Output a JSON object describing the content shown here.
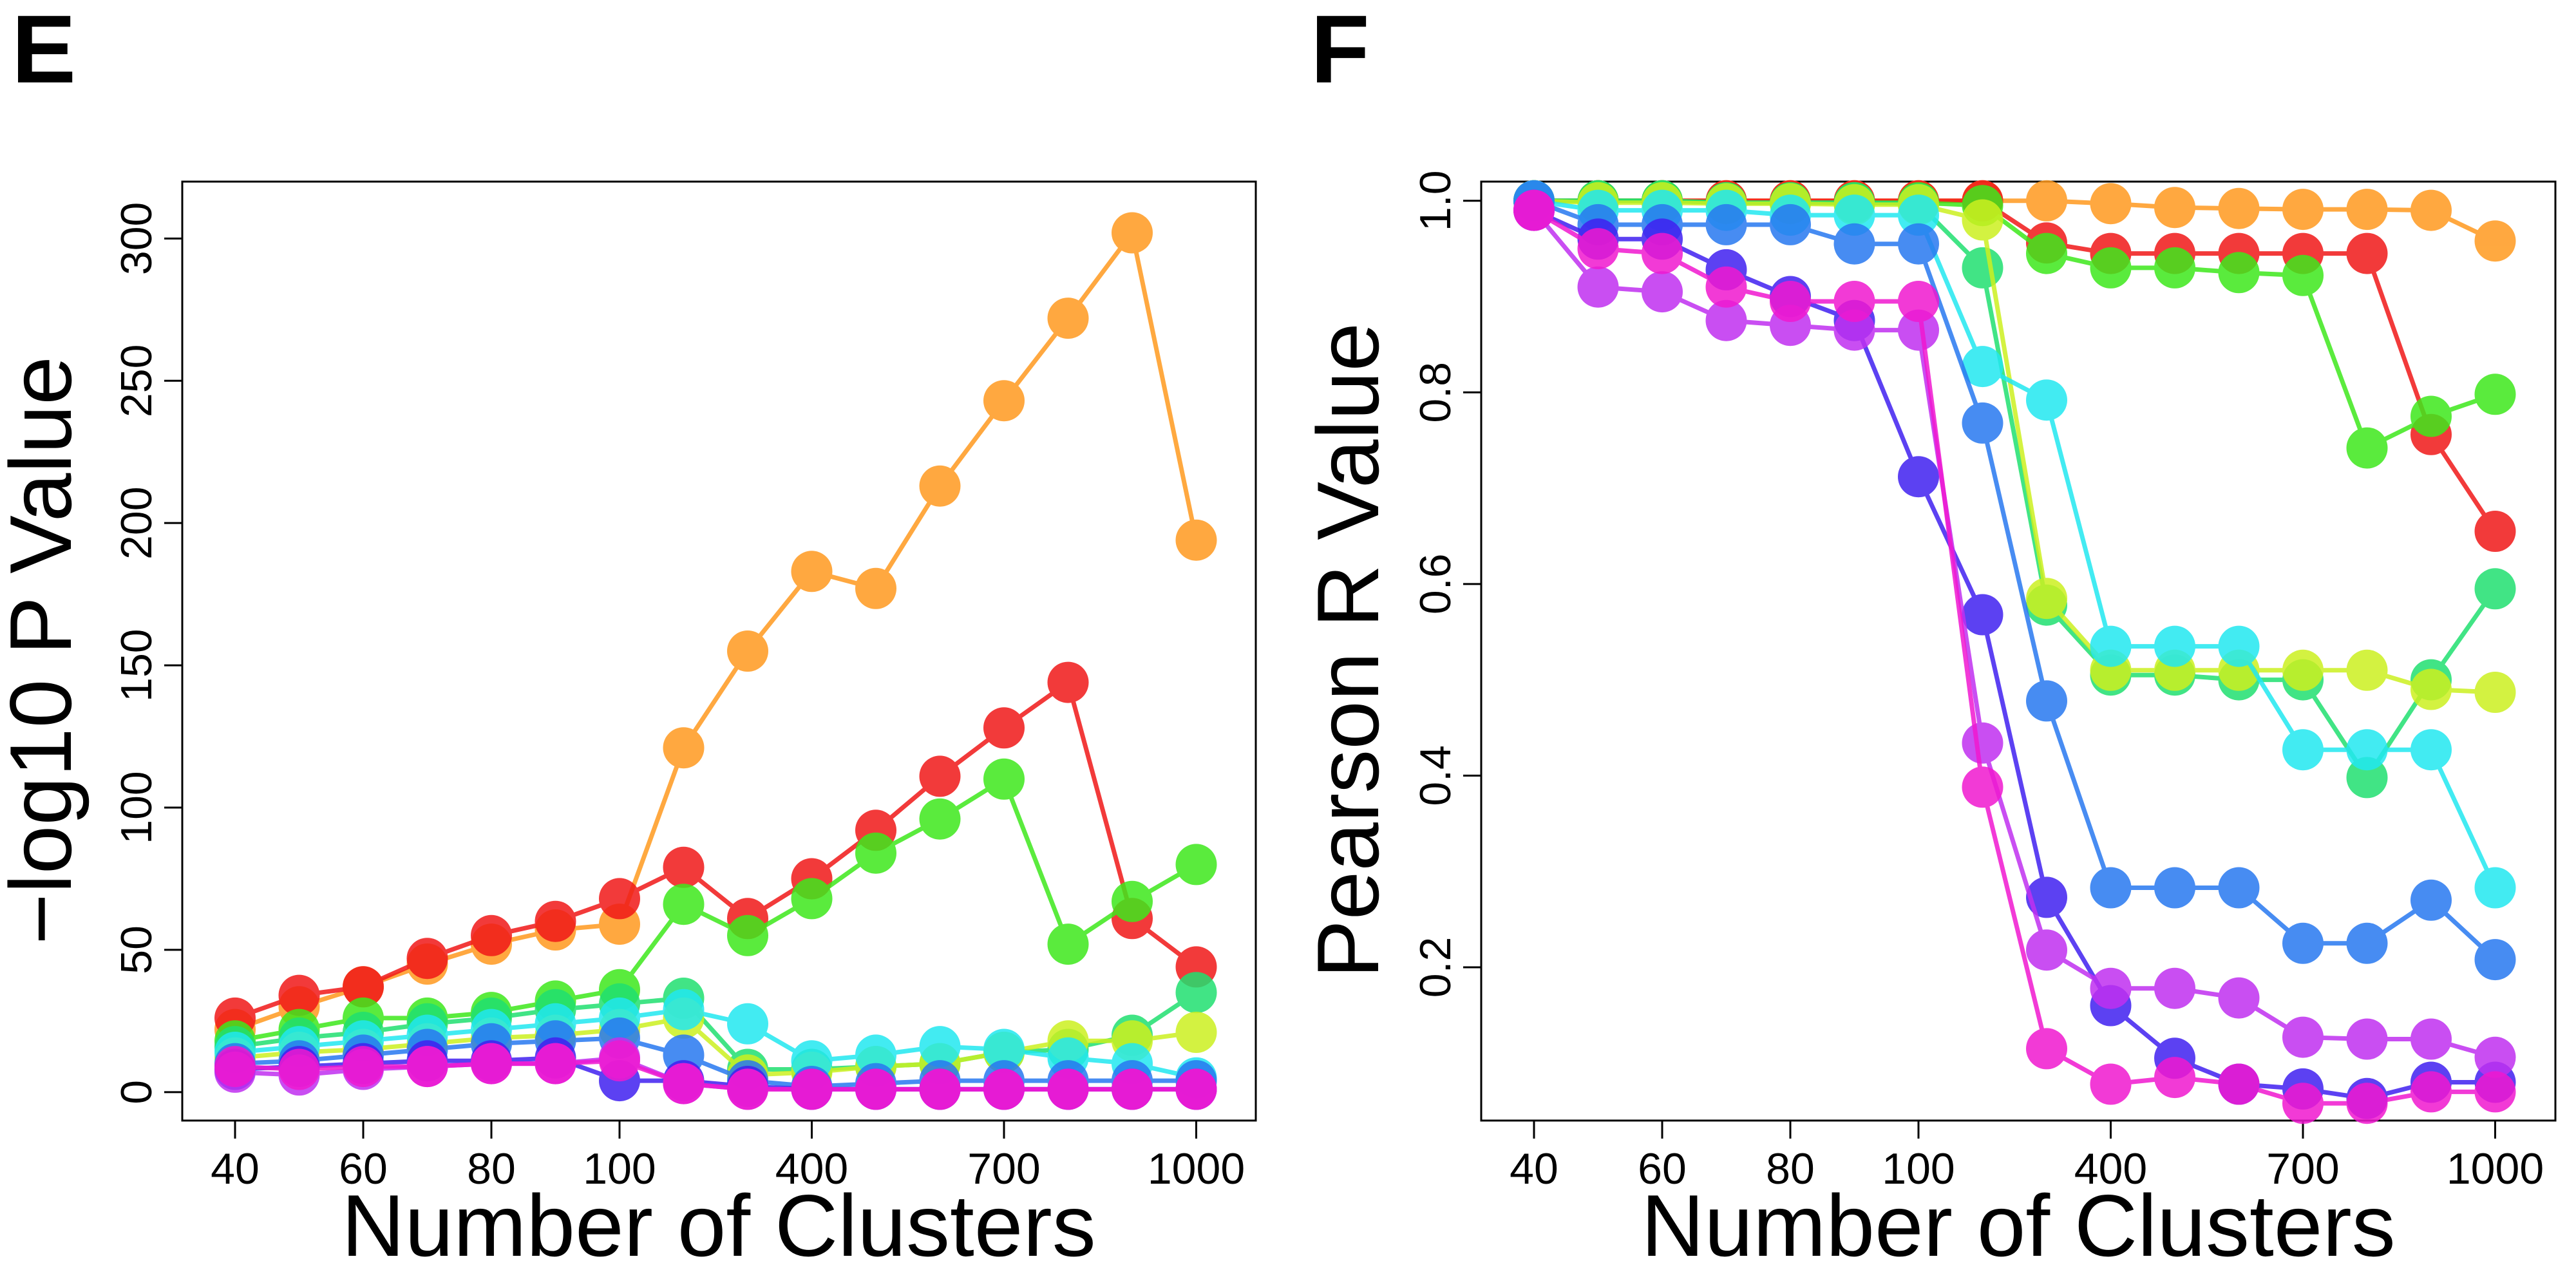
{
  "chart_data": [
    {
      "panel": "E",
      "type": "line",
      "xlabel": "Number of Clusters",
      "ylabel": "−log10 P Value",
      "x": [
        40,
        50,
        60,
        70,
        80,
        90,
        100,
        200,
        300,
        400,
        500,
        600,
        700,
        800,
        900,
        1000
      ],
      "x_tick_labels": [
        "40",
        "60",
        "80",
        "100",
        "400",
        "700",
        "1000"
      ],
      "y_ticks": [
        0,
        50,
        100,
        150,
        200,
        250,
        300
      ],
      "ylim": [
        -10,
        320
      ],
      "grid": false,
      "series": [
        {
          "color": "#ff9a1f",
          "values": [
            22,
            30,
            37,
            45,
            52,
            57,
            59,
            121,
            155,
            183,
            177,
            213,
            243,
            272,
            302,
            194
          ]
        },
        {
          "color": "#f01818",
          "values": [
            26,
            34,
            37,
            47,
            55,
            60,
            68,
            79,
            61,
            75,
            92,
            111,
            128,
            144,
            61,
            44
          ]
        },
        {
          "color": "#3ee81c",
          "values": [
            18,
            22,
            26,
            26,
            28,
            32,
            36,
            66,
            55,
            68,
            84,
            96,
            110,
            52,
            67,
            80
          ]
        },
        {
          "color": "#20e070",
          "values": [
            16,
            19,
            21,
            24,
            26,
            29,
            31,
            33,
            8,
            8,
            9,
            10,
            14,
            15,
            20,
            35
          ]
        },
        {
          "color": "#ccf020",
          "values": [
            12,
            14,
            15,
            17,
            19,
            20,
            22,
            26,
            6,
            7,
            9,
            10,
            14,
            18,
            18,
            21
          ]
        },
        {
          "color": "#22e8f0",
          "values": [
            14,
            16,
            18,
            20,
            22,
            24,
            26,
            29,
            24,
            11,
            13,
            16,
            15,
            12,
            10,
            5
          ]
        },
        {
          "color": "#2878f0",
          "values": [
            10,
            11,
            13,
            15,
            17,
            18,
            19,
            13,
            4,
            2,
            3,
            4,
            4,
            4,
            4,
            4
          ]
        },
        {
          "color": "#4020f0",
          "values": [
            8,
            9,
            10,
            11,
            11,
            12,
            4,
            4,
            2,
            1,
            1,
            1,
            1,
            1,
            1,
            1
          ]
        },
        {
          "color": "#c030f0",
          "values": [
            7,
            6,
            8,
            9,
            10,
            10,
            12,
            3,
            1,
            1,
            1,
            1,
            1,
            1,
            1,
            1
          ]
        },
        {
          "color": "#f018d0",
          "values": [
            9,
            8,
            9,
            9,
            10,
            10,
            11,
            3,
            1,
            1,
            1,
            1,
            1,
            1,
            1,
            1
          ]
        }
      ]
    },
    {
      "panel": "F",
      "type": "line",
      "xlabel": "Number of Clusters",
      "ylabel": "Pearson R Value",
      "x": [
        40,
        50,
        60,
        70,
        80,
        90,
        100,
        200,
        300,
        400,
        500,
        600,
        700,
        800,
        900,
        1000
      ],
      "x_tick_labels": [
        "40",
        "60",
        "80",
        "100",
        "400",
        "700",
        "1000"
      ],
      "y_ticks": [
        0.2,
        0.4,
        0.6,
        0.8,
        1.0
      ],
      "y_tick_labels": [
        "0.2",
        "0.4",
        "0.6",
        "0.8",
        "1.0"
      ],
      "ylim": [
        0.04,
        1.02
      ],
      "grid": false,
      "series": [
        {
          "color": "#ff9a1f",
          "values": [
            1.0,
            1.0,
            1.0,
            1.0,
            1.0,
            1.0,
            1.0,
            1.0,
            1.0,
            0.997,
            0.993,
            0.992,
            0.991,
            0.991,
            0.99,
            0.958
          ]
        },
        {
          "color": "#f01818",
          "values": [
            1.0,
            1.0,
            1.0,
            1.0,
            1.0,
            1.0,
            1.0,
            1.0,
            0.956,
            0.945,
            0.945,
            0.945,
            0.945,
            0.945,
            0.756,
            0.655
          ]
        },
        {
          "color": "#3ee81c",
          "values": [
            1.0,
            1.0,
            1.0,
            0.998,
            0.998,
            0.998,
            0.998,
            0.995,
            0.945,
            0.93,
            0.93,
            0.925,
            0.922,
            0.742,
            0.775,
            0.798
          ]
        },
        {
          "color": "#20e070",
          "values": [
            1.0,
            1.0,
            1.0,
            0.998,
            0.998,
            0.998,
            0.997,
            0.93,
            0.578,
            0.505,
            0.505,
            0.5,
            0.5,
            0.398,
            0.5,
            0.595
          ]
        },
        {
          "color": "#ccf020",
          "values": [
            1.0,
            0.998,
            0.998,
            0.997,
            0.997,
            0.996,
            0.996,
            0.98,
            0.585,
            0.51,
            0.51,
            0.51,
            0.51,
            0.51,
            0.49,
            0.487
          ]
        },
        {
          "color": "#22e8f0",
          "values": [
            1.0,
            0.99,
            0.99,
            0.99,
            0.985,
            0.985,
            0.985,
            0.827,
            0.792,
            0.535,
            0.535,
            0.535,
            0.427,
            0.427,
            0.427,
            0.283
          ]
        },
        {
          "color": "#2878f0",
          "values": [
            1.0,
            0.975,
            0.975,
            0.975,
            0.975,
            0.955,
            0.955,
            0.768,
            0.478,
            0.283,
            0.283,
            0.283,
            0.225,
            0.225,
            0.27,
            0.208
          ]
        },
        {
          "color": "#4020f0",
          "values": [
            0.99,
            0.96,
            0.96,
            0.928,
            0.9,
            0.875,
            0.712,
            0.568,
            0.273,
            0.16,
            0.105,
            0.078,
            0.073,
            0.063,
            0.08,
            0.08
          ]
        },
        {
          "color": "#c030f0",
          "values": [
            0.99,
            0.91,
            0.905,
            0.875,
            0.87,
            0.865,
            0.865,
            0.434,
            0.218,
            0.178,
            0.178,
            0.168,
            0.127,
            0.125,
            0.125,
            0.106
          ]
        },
        {
          "color": "#f018d0",
          "values": [
            0.99,
            0.95,
            0.945,
            0.91,
            0.895,
            0.895,
            0.895,
            0.388,
            0.115,
            0.078,
            0.085,
            0.078,
            0.058,
            0.058,
            0.07,
            0.07
          ]
        }
      ]
    }
  ]
}
